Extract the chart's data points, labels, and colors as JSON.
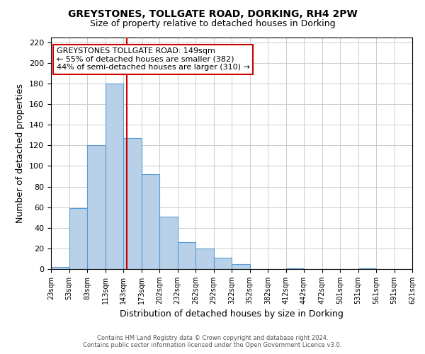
{
  "title": "GREYSTONES, TOLLGATE ROAD, DORKING, RH4 2PW",
  "subtitle": "Size of property relative to detached houses in Dorking",
  "xlabel": "Distribution of detached houses by size in Dorking",
  "ylabel": "Number of detached properties",
  "bar_values": [
    2,
    59,
    120,
    180,
    127,
    92,
    51,
    26,
    20,
    11,
    5,
    0,
    0,
    1,
    0,
    0,
    0,
    1,
    0,
    0
  ],
  "bin_labels": [
    "23sqm",
    "53sqm",
    "83sqm",
    "113sqm",
    "143sqm",
    "173sqm",
    "202sqm",
    "232sqm",
    "262sqm",
    "292sqm",
    "322sqm",
    "352sqm",
    "382sqm",
    "412sqm",
    "442sqm",
    "472sqm",
    "501sqm",
    "531sqm",
    "561sqm",
    "591sqm",
    "621sqm"
  ],
  "bar_color": "#b8d0e8",
  "bar_edge_color": "#5b9bd5",
  "ylim": [
    0,
    225
  ],
  "yticks": [
    0,
    20,
    40,
    60,
    80,
    100,
    120,
    140,
    160,
    180,
    200,
    220
  ],
  "vline_x": 149,
  "vline_color": "#cc0000",
  "annotation_title": "GREYSTONES TOLLGATE ROAD: 149sqm",
  "annotation_line1": "← 55% of detached houses are smaller (382)",
  "annotation_line2": "44% of semi-detached houses are larger (310) →",
  "annotation_box_color": "#ffffff",
  "annotation_border_color": "#cc0000",
  "background_color": "#ffffff",
  "grid_color": "#cccccc",
  "footer1": "Contains HM Land Registry data © Crown copyright and database right 2024.",
  "footer2": "Contains public sector information licensed under the Open Government Licence v3.0."
}
